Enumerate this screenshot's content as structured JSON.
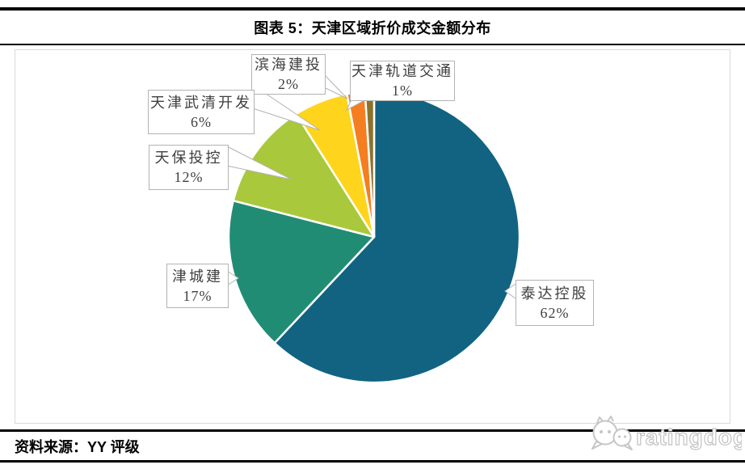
{
  "header": {
    "title": "图表 5：天津区域折价成交金额分布"
  },
  "chart_data": {
    "type": "pie",
    "title": "图表 5：天津区域折价成交金额分布",
    "direction": "clockwise",
    "start_angle_deg": 0,
    "legend": "none",
    "label_style": "callout-boxes",
    "slices": [
      {
        "label": "泰达控股",
        "value": 62,
        "pct_label": "62%",
        "color": "#116381"
      },
      {
        "label": "津城建",
        "value": 17,
        "pct_label": "17%",
        "color": "#218c74"
      },
      {
        "label": "天保投控",
        "value": 12,
        "pct_label": "12%",
        "color": "#a9c83b"
      },
      {
        "label": "天津武清开发",
        "value": 6,
        "pct_label": "6%",
        "color": "#ffd41c"
      },
      {
        "label": "滨海建投",
        "value": 2,
        "pct_label": "2%",
        "color": "#f57e20"
      },
      {
        "label": "天津轨道交通",
        "value": 1,
        "pct_label": "1%",
        "color": "#8c732d"
      }
    ]
  },
  "footer": {
    "source": "资料来源：YY 评级",
    "brand": "ratingdog"
  }
}
